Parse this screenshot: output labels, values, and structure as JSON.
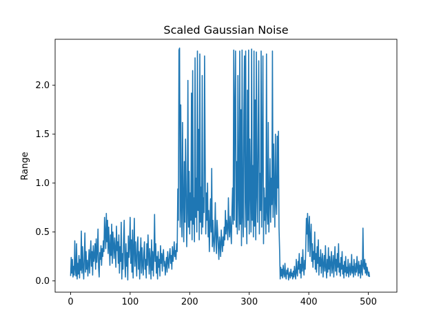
{
  "chart_data": {
    "type": "line",
    "title": "Scaled Gaussian Noise",
    "xlabel": "",
    "ylabel": "Range",
    "xlim": [
      -26,
      548
    ],
    "ylim": [
      -0.115,
      2.47
    ],
    "x_ticks": [
      0,
      100,
      200,
      300,
      400,
      500
    ],
    "x_tick_labels": [
      "0",
      "100",
      "200",
      "300",
      "400",
      "500"
    ],
    "y_ticks": [
      0.0,
      0.5,
      1.0,
      1.5,
      2.0
    ],
    "y_tick_labels": [
      "0.0",
      "0.5",
      "1.0",
      "1.5",
      "2.0"
    ],
    "grid": false,
    "legend": "none",
    "line_color": "#1f77b4",
    "n_points": 523,
    "x": {
      "start": 0,
      "step": 1
    },
    "y": [
      0.05,
      0.24,
      0.08,
      0.22,
      0.04,
      0.15,
      0.06,
      0.41,
      0.12,
      0.05,
      0.38,
      0.02,
      0.18,
      0.07,
      0.26,
      0.03,
      0.22,
      0.11,
      0.51,
      0.08,
      0.35,
      0.14,
      0.02,
      0.24,
      0.49,
      0.09,
      0.3,
      0.12,
      0.21,
      0.05,
      0.18,
      0.32,
      0.08,
      0.27,
      0.41,
      0.15,
      0.3,
      0.06,
      0.36,
      0.2,
      0.25,
      0.38,
      0.12,
      0.43,
      0.19,
      0.3,
      0.53,
      0.14,
      0.04,
      0.29,
      0.22,
      0.36,
      0.16,
      0.33,
      0.25,
      0.41,
      0.3,
      0.65,
      0.48,
      0.33,
      0.69,
      0.4,
      0.62,
      0.28,
      0.55,
      0.35,
      0.16,
      0.47,
      0.26,
      0.58,
      0.18,
      0.5,
      0.37,
      0.23,
      0.44,
      0.32,
      0.14,
      0.56,
      0.31,
      0.4,
      0.18,
      0.47,
      0.08,
      0.35,
      0.2,
      0.6,
      0.02,
      0.28,
      0.12,
      0.42,
      0.62,
      0.2,
      0.04,
      0.38,
      0.15,
      0.29,
      0.01,
      0.46,
      0.24,
      0.35,
      0.65,
      0.18,
      0.42,
      0.09,
      0.52,
      0.03,
      0.31,
      0.64,
      0.15,
      0.4,
      0.22,
      0.05,
      0.38,
      0.45,
      0.12,
      0.3,
      0.02,
      0.27,
      0.44,
      0.08,
      0.34,
      0.17,
      0.06,
      0.29,
      0.4,
      0.12,
      0.22,
      0.03,
      0.38,
      0.16,
      0.47,
      0.27,
      0.07,
      0.33,
      0.19,
      0.02,
      0.42,
      0.11,
      0.3,
      0.05,
      0.26,
      0.68,
      0.2,
      0.38,
      0.08,
      0.25,
      0.02,
      0.3,
      0.14,
      0.22,
      0.05,
      0.36,
      0.18,
      0.28,
      0.1,
      0.26,
      0.32,
      0.15,
      0.2,
      0.06,
      0.16,
      0.24,
      0.09,
      0.3,
      0.2,
      0.13,
      0.27,
      0.33,
      0.18,
      0.26,
      0.12,
      0.35,
      0.2,
      0.28,
      0.4,
      0.25,
      0.31,
      0.22,
      0.38,
      0.3,
      0.94,
      0.62,
      2.36,
      2.38,
      0.55,
      1.8,
      0.72,
      0.45,
      1.62,
      0.8,
      0.4,
      1.22,
      0.6,
      1.45,
      0.98,
      0.35,
      0.7,
      2.05,
      0.55,
      1.12,
      0.48,
      0.9,
      0.62,
      1.92,
      0.42,
      2.15,
      0.58,
      0.85,
      0.4,
      2.28,
      0.65,
      1.05,
      0.5,
      2.35,
      0.72,
      1.55,
      0.42,
      2.32,
      0.6,
      0.96,
      0.48,
      2.1,
      0.55,
      0.85,
      0.7,
      2.3,
      1.25,
      0.48,
      0.9,
      0.62,
      1.0,
      0.45,
      0.72,
      0.3,
      0.58,
      0.84,
      0.5,
      1.15,
      0.35,
      0.62,
      0.42,
      0.3,
      0.48,
      0.8,
      0.4,
      0.28,
      0.62,
      0.5,
      0.35,
      0.22,
      0.45,
      0.38,
      0.25,
      0.52,
      0.4,
      0.3,
      0.45,
      0.36,
      0.55,
      0.42,
      0.72,
      0.48,
      0.62,
      0.55,
      0.42,
      0.85,
      0.55,
      0.45,
      0.66,
      0.52,
      0.38,
      0.72,
      0.95,
      0.58,
      2.36,
      0.62,
      1.8,
      2.35,
      0.55,
      1.22,
      0.48,
      2.1,
      0.85,
      0.52,
      2.35,
      0.58,
      1.75,
      0.36,
      2.36,
      0.65,
      0.45,
      1.7,
      2.3,
      0.55,
      2.35,
      0.8,
      0.38,
      1.95,
      0.62,
      2.36,
      0.48,
      1.45,
      0.92,
      0.5,
      2.37,
      0.62,
      1.18,
      0.45,
      2.35,
      0.56,
      1.85,
      0.42,
      2.34,
      0.88,
      0.6,
      1.56,
      2.25,
      0.48,
      1.1,
      0.72,
      2.35,
      0.55,
      1.3,
      2.3,
      0.38,
      0.95,
      0.62,
      0.85,
      0.48,
      2.32,
      0.7,
      0.58,
      1.62,
      0.5,
      0.82,
      1.25,
      0.6,
      1.05,
      0.78,
      2.35,
      0.65,
      1.4,
      0.9,
      0.55,
      1.5,
      0.8,
      0.68,
      1.48,
      0.95,
      1.53,
      0.55,
      0.32,
      0.02,
      0.14,
      0.05,
      0.12,
      0.03,
      0.16,
      0.08,
      0.04,
      0.18,
      0.06,
      0.02,
      0.11,
      0.07,
      0.13,
      0.01,
      0.06,
      0.09,
      0.03,
      0.12,
      0.05,
      0.08,
      0.02,
      0.1,
      0.04,
      0.15,
      0.07,
      0.02,
      0.22,
      0.09,
      0.05,
      0.2,
      0.12,
      0.28,
      0.08,
      0.17,
      0.03,
      0.24,
      0.1,
      0.32,
      0.14,
      0.06,
      0.21,
      0.12,
      0.35,
      0.64,
      0.48,
      0.69,
      0.3,
      0.55,
      0.66,
      0.25,
      0.45,
      0.58,
      0.2,
      0.38,
      0.14,
      0.3,
      0.22,
      0.5,
      0.12,
      0.28,
      0.09,
      0.35,
      0.18,
      0.42,
      0.06,
      0.24,
      0.15,
      0.32,
      0.08,
      0.2,
      0.28,
      0.04,
      0.17,
      0.26,
      0.1,
      0.36,
      0.14,
      0.03,
      0.22,
      0.09,
      0.34,
      0.12,
      0.25,
      0.05,
      0.18,
      0.3,
      0.08,
      0.15,
      0.26,
      0.04,
      0.2,
      0.35,
      0.1,
      0.22,
      0.06,
      0.28,
      0.14,
      0.38,
      0.09,
      0.18,
      0.05,
      0.24,
      0.12,
      0.3,
      0.07,
      0.16,
      0.03,
      0.2,
      0.09,
      0.25,
      0.05,
      0.14,
      0.08,
      0.22,
      0.04,
      0.12,
      0.18,
      0.06,
      0.1,
      0.27,
      0.08,
      0.15,
      0.04,
      0.22,
      0.11,
      0.06,
      0.18,
      0.09,
      0.25,
      0.14,
      0.05,
      0.2,
      0.08,
      0.16,
      0.03,
      0.21,
      0.1,
      0.06,
      0.54,
      0.15,
      0.12,
      0.22,
      0.08,
      0.18,
      0.06,
      0.14,
      0.1,
      0.05,
      0.09,
      0.04
    ]
  }
}
